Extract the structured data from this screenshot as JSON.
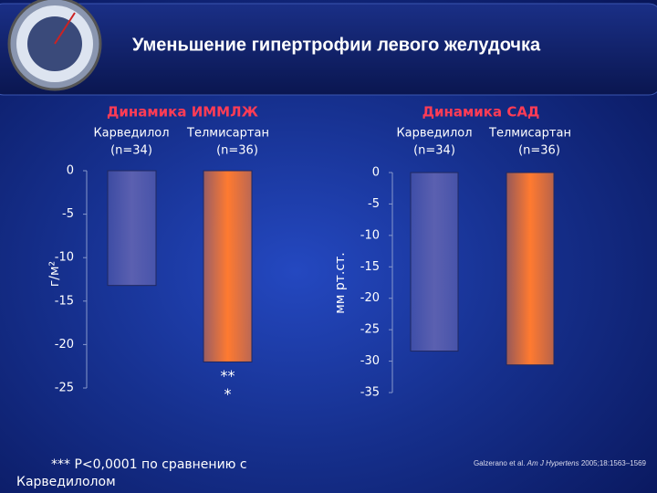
{
  "slide_title": "Уменьшение гипертрофии левого желудочка",
  "footnote": "*** P<0,0001 по сравнению с Карведилолом",
  "citation_authors": "Galzerano et al.",
  "citation_journal": "Am J Hypertens",
  "citation_details": "2005;18:1563–1569",
  "chart_data": [
    {
      "type": "bar",
      "title": "Динамика ИММЛЖ",
      "ylabel": "г/м²",
      "categories": [
        "Карведилол",
        "Телмисартан"
      ],
      "category_subtitles": [
        "(n=34)",
        "(n=36)"
      ],
      "values": [
        -13.2,
        -22
      ],
      "colors": [
        "#5b60b0",
        "#ff7a30"
      ],
      "ylim": [
        -25,
        0
      ],
      "yticks": [
        0,
        -5,
        -10,
        -15,
        -20,
        -25
      ],
      "annotation": "***"
    },
    {
      "type": "bar",
      "title": "Динамика САД",
      "ylabel": "мм рт.ст.",
      "categories": [
        "Карведилол",
        "Телмисартан"
      ],
      "category_subtitles": [
        "(n=34)",
        "(n=36)"
      ],
      "values": [
        -28.4,
        -30.6
      ],
      "colors": [
        "#5b60b0",
        "#ff7a30"
      ],
      "ylim": [
        -35,
        0
      ],
      "yticks": [
        0,
        -5,
        -10,
        -15,
        -20,
        -25,
        -30,
        -35
      ]
    }
  ]
}
